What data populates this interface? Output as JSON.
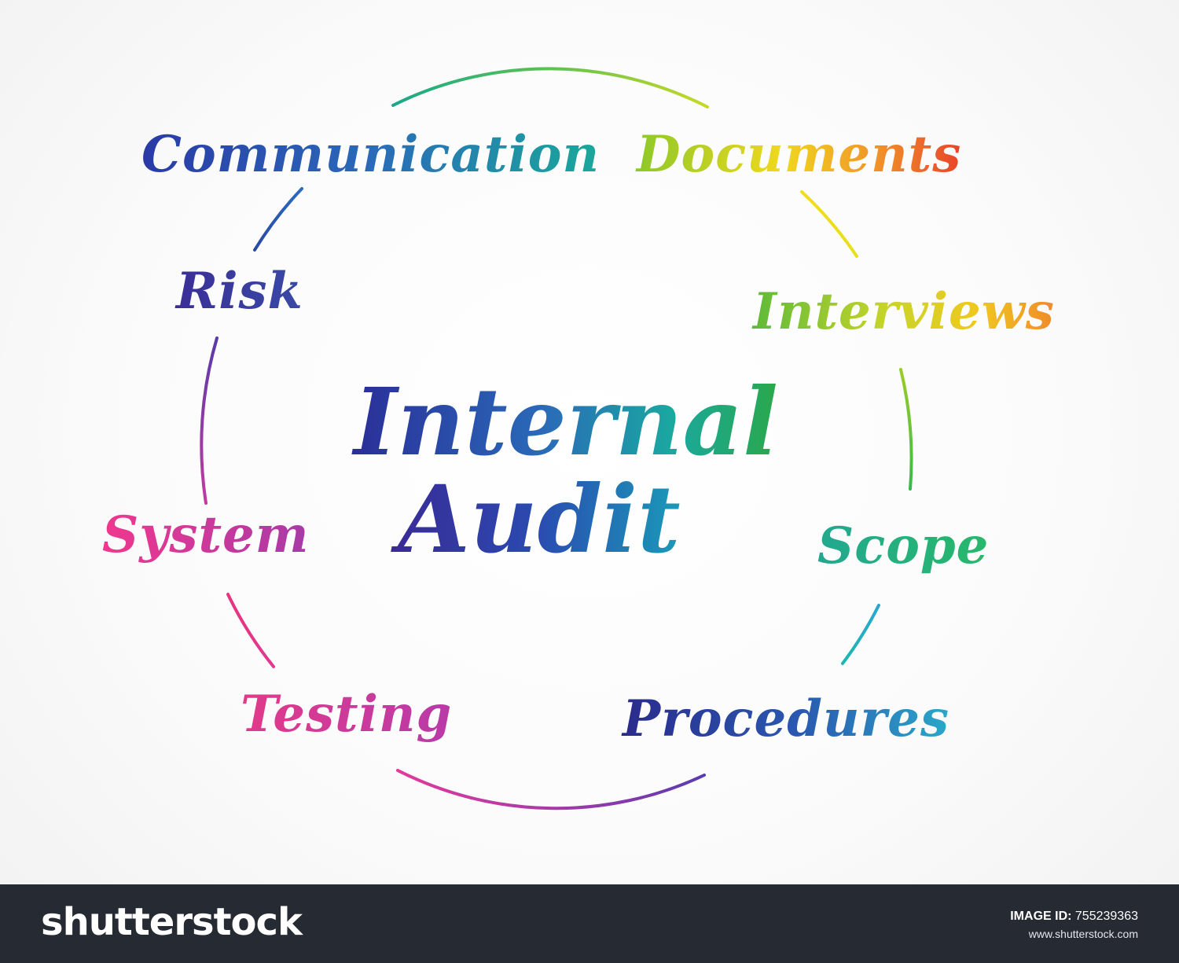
{
  "diagram": {
    "center": {
      "line1": "Internal",
      "line2": "Audit"
    },
    "terms": [
      {
        "label": "Communication",
        "color": "#2a5ab8"
      },
      {
        "label": "Documents",
        "color": "#a8cc2a"
      },
      {
        "label": "Interviews",
        "color": "#9cc82a"
      },
      {
        "label": "Scope",
        "color": "#22a69c"
      },
      {
        "label": "Procedures",
        "color": "#2f3f9c"
      },
      {
        "label": "Testing",
        "color": "#e8348f"
      },
      {
        "label": "System",
        "color": "#e1358f"
      },
      {
        "label": "Risk",
        "color": "#3d3a9a"
      }
    ],
    "ring_colors": {
      "top": "#1aa88a",
      "upper_right": "#e6d81e",
      "right": "#7cc62e",
      "lower_right": "#2aa6c8",
      "bottom": "#c82ea0",
      "lower_left": "#e23a88",
      "left": "#8a3aa8",
      "upper_left": "#2a5aa8"
    }
  },
  "footer": {
    "logo": "shutterstock",
    "id_label": "IMAGE ID:",
    "id_value": "755239363",
    "url": "www.shutterstock.com"
  }
}
